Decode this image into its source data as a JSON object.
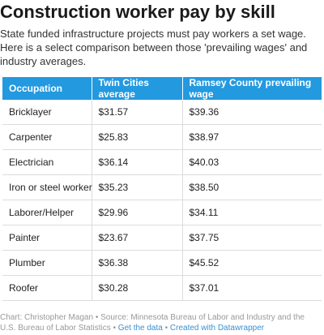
{
  "header": {
    "title": "Construction worker pay by skill",
    "subtitle": "State funded infrastructure projects must pay workers a set wage. Here is a select comparison between those 'prevailing wages' and industry averages."
  },
  "chart_data": {
    "type": "table",
    "columns": [
      "Occupation",
      "Twin Cities average",
      "Ramsey County prevailing wage"
    ],
    "rows": [
      [
        "Bricklayer",
        "$31.57",
        "$39.36"
      ],
      [
        "Carpenter",
        "$25.83",
        "$38.97"
      ],
      [
        "Electrician",
        "$36.14",
        "$40.03"
      ],
      [
        "Iron or steel worker",
        "$35.23",
        "$38.50"
      ],
      [
        "Laborer/Helper",
        "$29.96",
        "$34.11"
      ],
      [
        "Painter",
        "$23.67",
        "$37.75"
      ],
      [
        "Plumber",
        "$36.38",
        "$45.52"
      ],
      [
        "Roofer",
        "$30.28",
        "$37.01"
      ]
    ]
  },
  "footer": {
    "source": "Chart: Christopher Magan • Source: Minnesota Bureau of Labor and Industry and the U.S. Bureau of Labor Statistics •",
    "get_data": "Get the data",
    "separator": "•",
    "created_with": "Created with Datawrapper"
  },
  "colors": {
    "header_bg": "#2399e0",
    "header_text": "#ffffff",
    "link": "#3a8fd1"
  }
}
